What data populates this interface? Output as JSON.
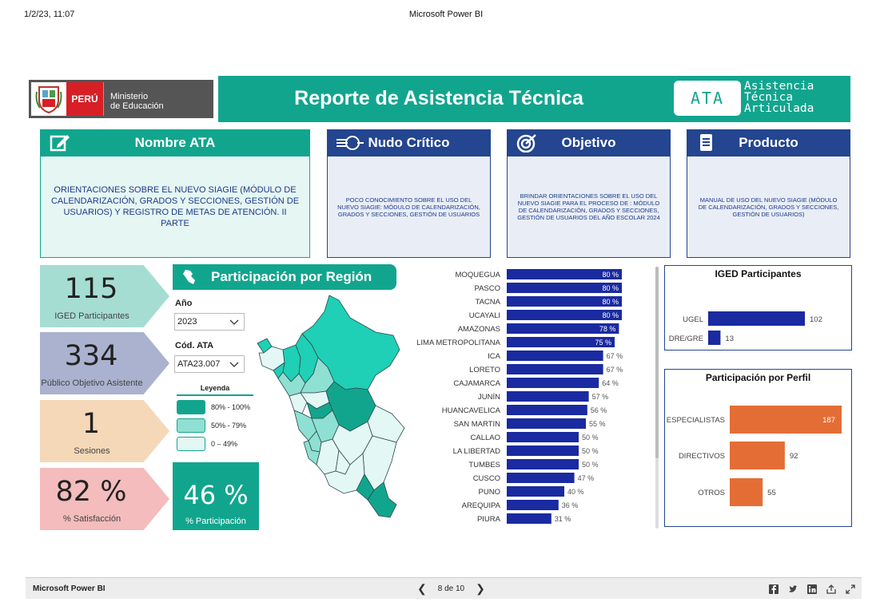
{
  "print_header": {
    "date": "1/2/23, 11:07",
    "title": "Microsoft Power BI"
  },
  "logo": {
    "country": "PERÚ",
    "ministry_line1": "Ministerio",
    "ministry_line2": "de Educación"
  },
  "banner": {
    "title": "Reporte de Asistencia Técnica",
    "ata_badge": "ATA",
    "ata_words": [
      "Asistencia",
      "Técnica",
      "Articulada"
    ]
  },
  "cards": {
    "nombre": {
      "title": "Nombre ATA",
      "text": "ORIENTACIONES SOBRE EL NUEVO SIAGIE (MÓDULO DE CALENDARIZACIÓN, GRADOS Y SECCIONES, GESTIÓN DE USUARIOS) Y REGISTRO DE METAS DE ATENCIÓN. II PARTE"
    },
    "nudo": {
      "title": "Nudo Crítico",
      "text": "POCO CONOCIMIENTO SOBRE EL USO DEL NUEVO SIAGIE: MÓDULO DE CALENDARIZACIÓN, GRADOS Y SECCIONES, GESTIÓN DE USUARIOS"
    },
    "objetivo": {
      "title": "Objetivo",
      "text": "BRINDAR ORIENTACIONES SOBRE EL USO DEL NUEVO SIAGIE PARA EL PROCESO DE : MÓDULO DE CALENDARIZACIÓN, GRADOS Y SECCIONES, GESTIÓN DE USUARIOS DEL AÑO ESCOLAR 2024"
    },
    "producto": {
      "title": "Producto",
      "text": "MANUAL DE USO DEL NUEVO SIAGIE (MÓDULO DE CALENDARIZACIÓN, GRADOS Y SECCIONES, GESTIÓN DE USUARIOS)"
    }
  },
  "kpis": {
    "iged": {
      "value": "115",
      "label": "IGED Participantes"
    },
    "publico": {
      "value": "334",
      "label": "Público Objetivo Asistente"
    },
    "sesiones": {
      "value": "1",
      "label": "Sesiones"
    },
    "satisfaccion": {
      "value": "82 %",
      "label": "% Satisfacción"
    },
    "participacion": {
      "value": "46 %",
      "label": "% Participación"
    }
  },
  "region": {
    "title": "Participación por Región",
    "filters": {
      "anio_label": "Año",
      "anio_value": "2023",
      "cod_label": "Cód. ATA",
      "cod_value": "ATA23.007"
    },
    "legend": {
      "title": "Leyenda",
      "items": [
        {
          "label": "80% - 100%",
          "color": "#12a58e"
        },
        {
          "label": "50% - 79%",
          "color": "#8ee0d2"
        },
        {
          "label": "0 – 49%",
          "color": "#e3f8f4"
        }
      ]
    }
  },
  "colors": {
    "teal": "#12a58e",
    "navy": "#24458f",
    "bar_blue": "#1a2aa0",
    "orange": "#e46d36"
  },
  "chart_data": [
    {
      "type": "bar",
      "orientation": "horizontal",
      "categories": [
        "MOQUEGUA",
        "PASCO",
        "TACNA",
        "UCAYALI",
        "AMAZONAS",
        "LIMA METROPOLITANA",
        "ICA",
        "LORETO",
        "CAJAMARCA",
        "JUNÍN",
        "HUANCAVELICA",
        "SAN MARTIN",
        "CALLAO",
        "LA LIBERTAD",
        "TUMBES",
        "CUSCO",
        "PUNO",
        "AREQUIPA",
        "PIURA"
      ],
      "values": [
        80,
        80,
        80,
        80,
        78,
        75,
        67,
        67,
        64,
        57,
        56,
        55,
        50,
        50,
        50,
        47,
        40,
        36,
        31
      ],
      "labels": [
        "80 %",
        "80 %",
        "80 %",
        "80 %",
        "78 %",
        "75 %",
        "67 %",
        "67 %",
        "64 %",
        "57 %",
        "56 %",
        "55 %",
        "50 %",
        "50 %",
        "50 %",
        "47 %",
        "40 %",
        "36 %",
        "31 %"
      ],
      "xlim": [
        0,
        100
      ]
    },
    {
      "type": "bar",
      "orientation": "horizontal",
      "title": "IGED Participantes",
      "categories": [
        "UGEL",
        "DRE/GRE"
      ],
      "values": [
        102,
        13
      ]
    },
    {
      "type": "bar",
      "orientation": "horizontal",
      "title": "Participación por Perfil",
      "categories": [
        "ESPECIALISTAS",
        "DIRECTIVOS",
        "OTROS"
      ],
      "values": [
        187,
        92,
        55
      ]
    }
  ],
  "footer": {
    "brand": "Microsoft Power BI",
    "page": "8 de 10",
    "prev": "❮",
    "next": "❯"
  }
}
